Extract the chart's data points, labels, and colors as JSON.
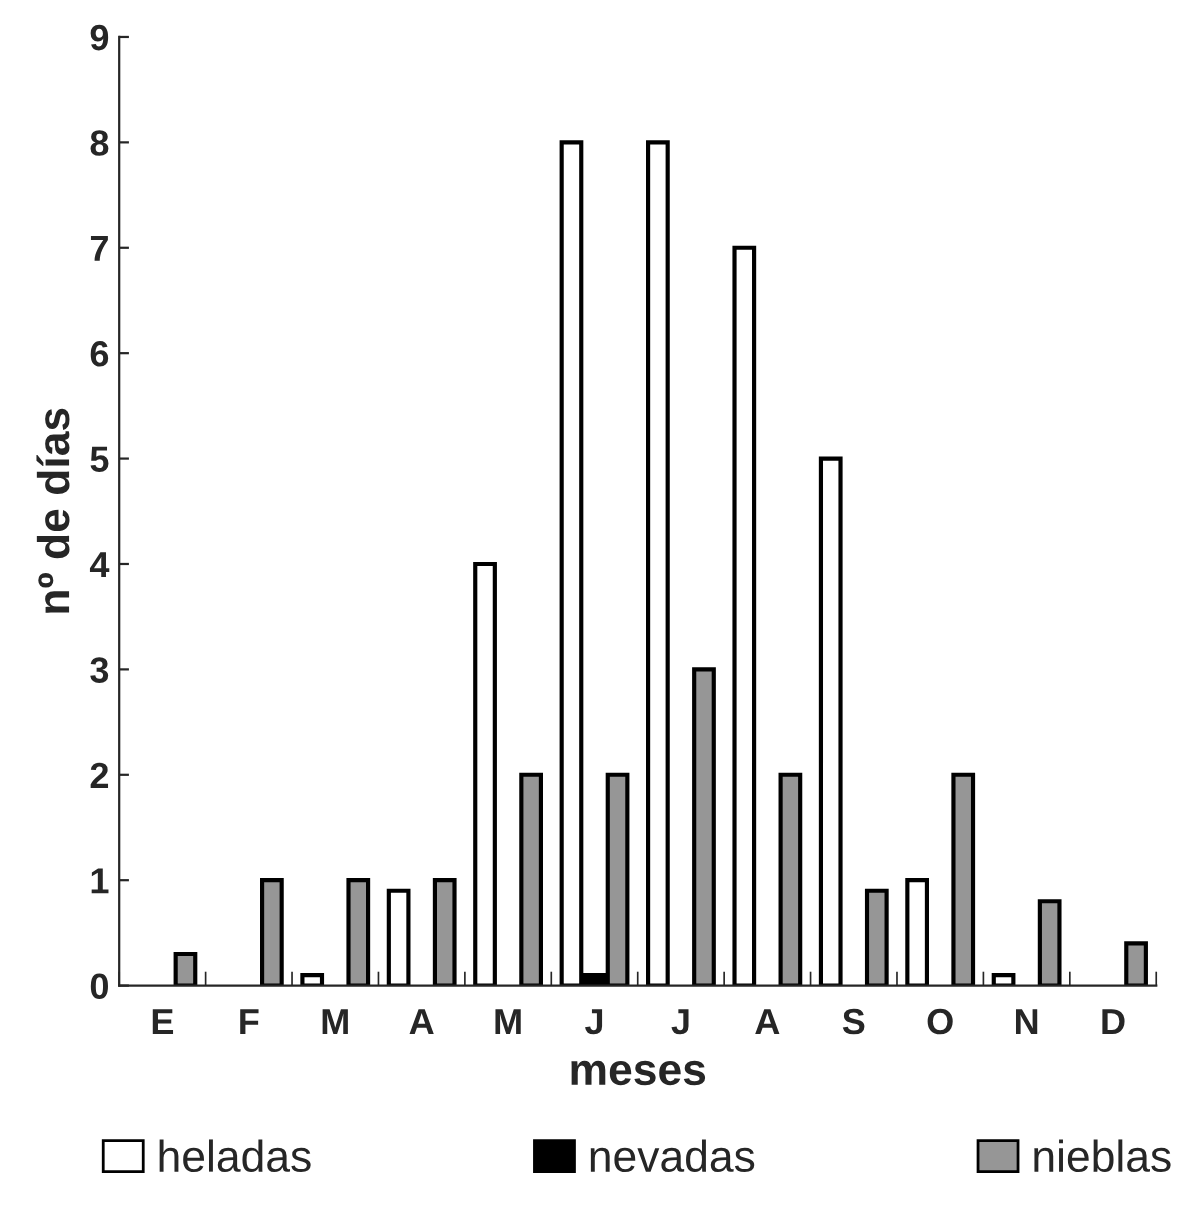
{
  "chart_data": {
    "type": "bar",
    "xlabel": "meses",
    "ylabel": "nº de días",
    "categories": [
      "E",
      "F",
      "M",
      "A",
      "M",
      "J",
      "J",
      "A",
      "S",
      "O",
      "N",
      "D"
    ],
    "series": [
      {
        "name": "heladas",
        "color": "#ffffff",
        "values": [
          null,
          null,
          0.1,
          0.9,
          4,
          8,
          8,
          7,
          5,
          1,
          0.1,
          null
        ]
      },
      {
        "name": "nevadas",
        "color": "#000000",
        "values": [
          null,
          null,
          null,
          null,
          null,
          0.1,
          null,
          null,
          null,
          null,
          null,
          null
        ]
      },
      {
        "name": "nieblas",
        "color": "#969696",
        "values": [
          0.3,
          1,
          1,
          1,
          2,
          2,
          3,
          2,
          0.9,
          2,
          0.8,
          0.4
        ]
      }
    ],
    "ylim": [
      0,
      9
    ],
    "yticks": [
      0,
      1,
      2,
      3,
      4,
      5,
      6,
      7,
      8,
      9
    ],
    "grid": false,
    "legend": "bottom"
  }
}
